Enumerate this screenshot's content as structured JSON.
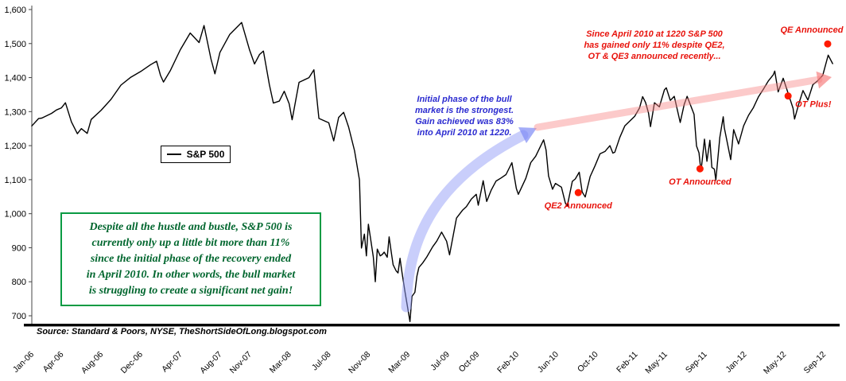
{
  "page": {
    "background": "#ffffff"
  },
  "chart_data": {
    "type": "line",
    "title": "",
    "legend_position": "mid-left",
    "grid": false,
    "y_axis": {
      "min": 700,
      "max": 1600,
      "tick_step": 100,
      "tick_labels": [
        "700",
        "800",
        "900",
        "1,000",
        "1,100",
        "1,200",
        "1,300",
        "1,400",
        "1,500",
        "1,600"
      ]
    },
    "x_axis": {
      "unit": "months since Jan-06",
      "tick_labels": [
        "Jan-06",
        "Apr-06",
        "Aug-06",
        "Dec-06",
        "Apr-07",
        "Aug-07",
        "Nov-07",
        "Mar-08",
        "Jul-08",
        "Nov-08",
        "Mar-09",
        "Jul-09",
        "Oct-09",
        "Feb-10",
        "Jun-10",
        "Oct-10",
        "Feb-11",
        "May-11",
        "Sep-11",
        "Jan-12",
        "May-12",
        "Sep-12"
      ],
      "tick_month_offsets": [
        0,
        3,
        7,
        11,
        15,
        19,
        22,
        26,
        30,
        34,
        38,
        42,
        45,
        49,
        53,
        57,
        61,
        64,
        68,
        72,
        76,
        80
      ]
    },
    "series": [
      {
        "name": "S&P 500",
        "color": "#000000",
        "points": [
          [
            0,
            1258
          ],
          [
            0.7,
            1280
          ],
          [
            1,
            1281
          ],
          [
            2,
            1295
          ],
          [
            2.5,
            1305
          ],
          [
            3,
            1311
          ],
          [
            3.4,
            1326
          ],
          [
            4,
            1270
          ],
          [
            4.6,
            1235
          ],
          [
            5,
            1250
          ],
          [
            5.6,
            1236
          ],
          [
            6,
            1277
          ],
          [
            7,
            1304
          ],
          [
            8,
            1336
          ],
          [
            9,
            1378
          ],
          [
            10,
            1401
          ],
          [
            11,
            1418
          ],
          [
            12,
            1438
          ],
          [
            12.6,
            1448
          ],
          [
            13,
            1407
          ],
          [
            13.3,
            1387
          ],
          [
            14,
            1421
          ],
          [
            15,
            1482
          ],
          [
            16,
            1531
          ],
          [
            16.9,
            1503
          ],
          [
            17.4,
            1553
          ],
          [
            18.1,
            1455
          ],
          [
            18.5,
            1411
          ],
          [
            19,
            1474
          ],
          [
            20,
            1527
          ],
          [
            21.2,
            1562
          ],
          [
            22,
            1481
          ],
          [
            22.5,
            1440
          ],
          [
            23,
            1468
          ],
          [
            23.4,
            1478
          ],
          [
            24,
            1379
          ],
          [
            24.4,
            1325
          ],
          [
            25,
            1331
          ],
          [
            25.5,
            1360
          ],
          [
            26,
            1323
          ],
          [
            26.3,
            1276
          ],
          [
            27,
            1386
          ],
          [
            28,
            1400
          ],
          [
            28.5,
            1423
          ],
          [
            29,
            1280
          ],
          [
            30,
            1267
          ],
          [
            30.5,
            1214
          ],
          [
            31,
            1283
          ],
          [
            31.5,
            1298
          ],
          [
            32,
            1255
          ],
          [
            32.6,
            1185
          ],
          [
            33.1,
            1099
          ],
          [
            33.3,
            899
          ],
          [
            33.6,
            940
          ],
          [
            33.8,
            876
          ],
          [
            34,
            969
          ],
          [
            34.2,
            931
          ],
          [
            34.5,
            873
          ],
          [
            34.7,
            800
          ],
          [
            34.9,
            896
          ],
          [
            35.2,
            876
          ],
          [
            35.4,
            880
          ],
          [
            35.6,
            887
          ],
          [
            35.9,
            872
          ],
          [
            36.1,
            932
          ],
          [
            36.3,
            890
          ],
          [
            36.5,
            850
          ],
          [
            36.8,
            832
          ],
          [
            37,
            826
          ],
          [
            37.2,
            869
          ],
          [
            37.4,
            827
          ],
          [
            37.7,
            770
          ],
          [
            37.9,
            735
          ],
          [
            38.2,
            683
          ],
          [
            38.4,
            757
          ],
          [
            38.7,
            769
          ],
          [
            38.9,
            816
          ],
          [
            39.1,
            842
          ],
          [
            39.5,
            856
          ],
          [
            39.9,
            873
          ],
          [
            40.5,
            903
          ],
          [
            40.9,
            919
          ],
          [
            41.4,
            946
          ],
          [
            41.9,
            919
          ],
          [
            42.2,
            879
          ],
          [
            42.9,
            987
          ],
          [
            43.5,
            1010
          ],
          [
            43.9,
            1021
          ],
          [
            44.4,
            1043
          ],
          [
            44.9,
            1057
          ],
          [
            45.1,
            1025
          ],
          [
            45.6,
            1097
          ],
          [
            45.95,
            1036
          ],
          [
            46.4,
            1069
          ],
          [
            46.9,
            1096
          ],
          [
            47.4,
            1105
          ],
          [
            47.9,
            1115
          ],
          [
            48.5,
            1150
          ],
          [
            48.95,
            1074
          ],
          [
            49.15,
            1057
          ],
          [
            49.9,
            1104
          ],
          [
            50.4,
            1150
          ],
          [
            50.9,
            1169
          ],
          [
            51.7,
            1217
          ],
          [
            51.95,
            1187
          ],
          [
            52.2,
            1111
          ],
          [
            52.6,
            1072
          ],
          [
            52.9,
            1089
          ],
          [
            53.5,
            1078
          ],
          [
            53.9,
            1031
          ],
          [
            54.1,
            1023
          ],
          [
            54.6,
            1095
          ],
          [
            54.9,
            1102
          ],
          [
            55.3,
            1122
          ],
          [
            55.6,
            1064
          ],
          [
            55.9,
            1049
          ],
          [
            56.4,
            1109
          ],
          [
            56.9,
            1141
          ],
          [
            57.4,
            1176
          ],
          [
            57.9,
            1183
          ],
          [
            58.4,
            1200
          ],
          [
            58.7,
            1178
          ],
          [
            58.9,
            1181
          ],
          [
            59.4,
            1224
          ],
          [
            59.9,
            1258
          ],
          [
            60.4,
            1272
          ],
          [
            60.9,
            1286
          ],
          [
            61.4,
            1311
          ],
          [
            61.7,
            1344
          ],
          [
            62,
            1327
          ],
          [
            62.3,
            1296
          ],
          [
            62.5,
            1256
          ],
          [
            62.9,
            1326
          ],
          [
            63.4,
            1314
          ],
          [
            63.9,
            1364
          ],
          [
            64.1,
            1370
          ],
          [
            64.5,
            1333
          ],
          [
            64.9,
            1345
          ],
          [
            65.5,
            1268
          ],
          [
            65.9,
            1321
          ],
          [
            66.2,
            1345
          ],
          [
            66.9,
            1292
          ],
          [
            67.15,
            1199
          ],
          [
            67.4,
            1179
          ],
          [
            67.6,
            1124
          ],
          [
            67.8,
            1177
          ],
          [
            67.95,
            1219
          ],
          [
            68.2,
            1154
          ],
          [
            68.5,
            1216
          ],
          [
            68.7,
            1136
          ],
          [
            68.95,
            1131
          ],
          [
            69.1,
            1099
          ],
          [
            69.5,
            1224
          ],
          [
            69.85,
            1285
          ],
          [
            69.95,
            1253
          ],
          [
            70.6,
            1159
          ],
          [
            70.9,
            1247
          ],
          [
            71.4,
            1205
          ],
          [
            71.9,
            1258
          ],
          [
            72.4,
            1289
          ],
          [
            72.9,
            1312
          ],
          [
            73.4,
            1343
          ],
          [
            73.9,
            1366
          ],
          [
            74.4,
            1390
          ],
          [
            74.9,
            1408
          ],
          [
            75.05,
            1419
          ],
          [
            75.4,
            1358
          ],
          [
            75.9,
            1398
          ],
          [
            76.4,
            1354
          ],
          [
            76.9,
            1310
          ],
          [
            77.05,
            1278
          ],
          [
            77.5,
            1325
          ],
          [
            77.9,
            1362
          ],
          [
            78.4,
            1334
          ],
          [
            78.9,
            1379
          ],
          [
            79.4,
            1391
          ],
          [
            79.9,
            1407
          ],
          [
            80.45,
            1466
          ],
          [
            80.9,
            1441
          ]
        ]
      }
    ],
    "events": [
      {
        "label": "QE2 Announced",
        "month": 55.2,
        "value": 1062,
        "label_pos": "below"
      },
      {
        "label": "OT Announced",
        "month": 67.5,
        "value": 1132,
        "label_pos": "below"
      },
      {
        "label": "OT Plus!",
        "month": 76.4,
        "value": 1346,
        "label_pos": "right"
      },
      {
        "label": "QE Announced",
        "month": 80.4,
        "value": 1499,
        "label_pos": "above"
      }
    ]
  },
  "legend": {
    "label": "S&P 500"
  },
  "annotations": {
    "blue_note": {
      "color": "#2b2bd0",
      "lines": [
        "Initial phase of the bull",
        "market is the strongest.",
        "Gain achieved was 83%",
        "into April 2010 at 1220."
      ]
    },
    "red_note": {
      "color": "#e8130c",
      "lines": [
        "Since April 2010 at 1220 S&P 500",
        "has gained only 11% despite QE2,",
        "OT & QE3 announced recently..."
      ]
    },
    "green_box": {
      "text_color": "#00662e",
      "border_color": "#0a9b43",
      "lines": [
        "Despite all the hustle and bustle, S&P 500 is",
        "currently only up a little bit more than 11%",
        "since the initial phase of the recovery ended",
        "in April 2010. In other words, the bull market",
        "is struggling to create a significant net gain!"
      ]
    },
    "source": "Source: Standard & Poors, NYSE, TheShortSideOfLong.blogspot.com"
  },
  "decorations": {
    "blue_arrow_color": "rgba(148,158,248,0.5)",
    "blue_arrow_head_color": "rgba(125,138,245,0.7)",
    "pink_arrow_color": "rgba(248,138,138,0.45)",
    "pink_arrow_head_color": "rgba(246,120,120,0.65)",
    "event_dot_color": "#ff1a00",
    "event_label_color": "#e8130c"
  }
}
